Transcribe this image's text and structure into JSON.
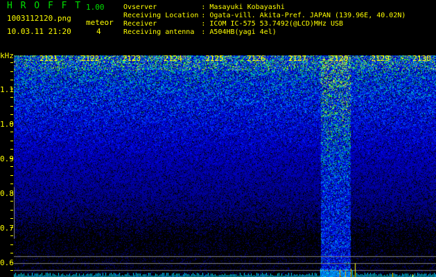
{
  "app": {
    "title": "H R O F F T",
    "version": "1.00"
  },
  "file": {
    "name": "1003112120.png",
    "datetime": "10.03.11 21:20"
  },
  "meteor": {
    "label": "meteor",
    "count": "4"
  },
  "info": [
    {
      "key": "Ovserver",
      "value": ": Masayuki Kobayashi"
    },
    {
      "key": "Receiving Location",
      "value": ": Ogata-vill. Akita-Pref. JAPAN (139.96E, 40.02N)"
    },
    {
      "key": "Receiver",
      "value": ": ICOM IC-575 53.7492(@LCD)MHz USB"
    },
    {
      "key": "Receiving antenna",
      "value": ": A504HB(yagi 4el)"
    }
  ],
  "spectrogram": {
    "y_unit": "kHz",
    "y_ticks": [
      "1.1",
      "1.0",
      "0.9",
      "0.8",
      "0.7",
      "0.6"
    ],
    "x_ticks": [
      "2121",
      "2122",
      "2123",
      "2124",
      "2125",
      "2126",
      "2127",
      "2128",
      "2129",
      "2130"
    ],
    "colors": {
      "text": "#ffff00",
      "title": "#00e000",
      "signal_low": "#0000c0",
      "signal_high": "#00ff40",
      "level": "#00e0ff"
    }
  }
}
